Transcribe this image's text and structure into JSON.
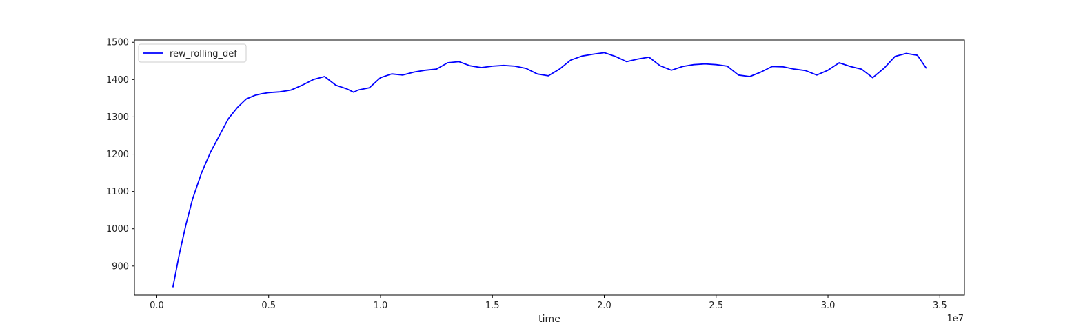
{
  "chart_data": {
    "type": "line",
    "title": "",
    "xlabel": "time",
    "ylabel": "",
    "x_offset_label": "1e7",
    "xlim": [
      -0.1,
      3.61
    ],
    "ylim": [
      822,
      1506
    ],
    "xticks": [
      0.0,
      0.5,
      1.0,
      1.5,
      2.0,
      2.5,
      3.0,
      3.5
    ],
    "xtick_labels": [
      "0.0",
      "0.5",
      "1.0",
      "1.5",
      "2.0",
      "2.5",
      "3.0",
      "3.5"
    ],
    "yticks": [
      900,
      1000,
      1100,
      1200,
      1300,
      1400,
      1500
    ],
    "ytick_labels": [
      "900",
      "1000",
      "1100",
      "1200",
      "1300",
      "1400",
      "1500"
    ],
    "grid": false,
    "legend": {
      "placement": "top-left",
      "entries": [
        "rew_rolling_def"
      ]
    },
    "series": [
      {
        "name": "rew_rolling_def",
        "color": "#0000ff",
        "x": [
          0.072,
          0.1,
          0.13,
          0.16,
          0.2,
          0.24,
          0.28,
          0.32,
          0.36,
          0.4,
          0.44,
          0.47,
          0.5,
          0.55,
          0.6,
          0.65,
          0.7,
          0.75,
          0.8,
          0.85,
          0.88,
          0.9,
          0.95,
          1.0,
          1.05,
          1.1,
          1.15,
          1.2,
          1.25,
          1.3,
          1.35,
          1.4,
          1.45,
          1.5,
          1.55,
          1.6,
          1.65,
          1.7,
          1.75,
          1.8,
          1.85,
          1.9,
          1.95,
          2.0,
          2.05,
          2.1,
          2.15,
          2.2,
          2.25,
          2.3,
          2.35,
          2.4,
          2.45,
          2.5,
          2.55,
          2.6,
          2.65,
          2.7,
          2.75,
          2.8,
          2.85,
          2.9,
          2.95,
          3.0,
          3.05,
          3.1,
          3.15,
          3.2,
          3.25,
          3.3,
          3.35,
          3.4,
          3.44
        ],
        "y": [
          843,
          930,
          1010,
          1080,
          1150,
          1205,
          1250,
          1295,
          1325,
          1348,
          1358,
          1362,
          1365,
          1367,
          1372,
          1385,
          1400,
          1408,
          1385,
          1375,
          1366,
          1372,
          1378,
          1405,
          1415,
          1412,
          1420,
          1425,
          1428,
          1445,
          1448,
          1437,
          1432,
          1436,
          1438,
          1436,
          1430,
          1415,
          1410,
          1428,
          1452,
          1463,
          1468,
          1472,
          1462,
          1448,
          1455,
          1460,
          1437,
          1425,
          1435,
          1440,
          1442,
          1440,
          1436,
          1412,
          1408,
          1420,
          1435,
          1434,
          1428,
          1424,
          1412,
          1425,
          1445,
          1435,
          1428,
          1405,
          1430,
          1462,
          1470,
          1465,
          1430
        ]
      }
    ]
  }
}
